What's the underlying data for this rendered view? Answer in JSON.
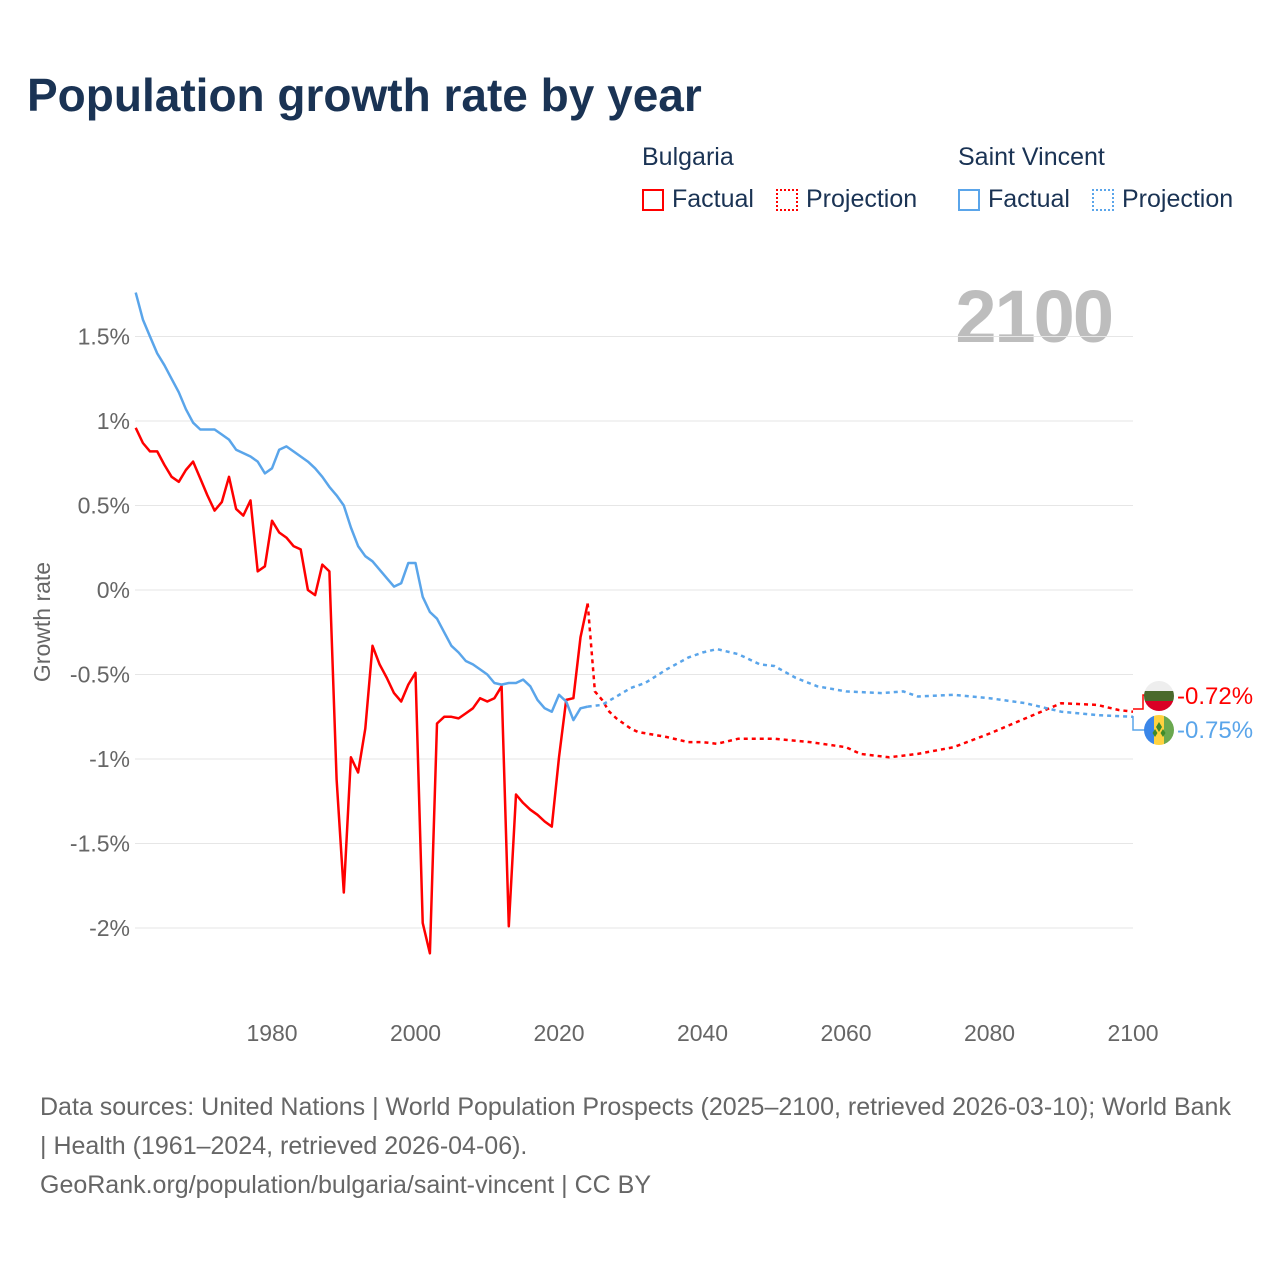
{
  "title": "Population growth rate by year",
  "current_year": "2100",
  "legend": {
    "groups": [
      {
        "name": "Bulgaria",
        "factual": "Factual",
        "projection": "Projection",
        "color": "#ff0000"
      },
      {
        "name": "Saint Vincent",
        "factual": "Factual",
        "projection": "Projection",
        "color": "#5aa5ea"
      }
    ]
  },
  "end_labels": {
    "bulgaria": "-0.72%",
    "saint_vincent": "-0.75%"
  },
  "footer": {
    "sources": "Data sources: United Nations | World Population Prospects (2025–2100, retrieved 2026-03-10); World Bank | Health (1961–2024, retrieved 2026-04-06).",
    "credit": "GeoRank.org/population/bulgaria/saint-vincent | CC BY"
  },
  "chart_data": {
    "type": "line",
    "title": "Population growth rate by year",
    "xlabel": "",
    "ylabel": "Growth rate",
    "xlim": [
      1961,
      2100
    ],
    "ylim": [
      -2.4,
      1.85
    ],
    "grid": true,
    "x_ticks": [
      1980,
      2000,
      2020,
      2040,
      2060,
      2080,
      2100
    ],
    "x_tick_labels": [
      "1980",
      "2000",
      "2020",
      "2040",
      "2060",
      "2080",
      "2100"
    ],
    "y_ticks": [
      1.5,
      1,
      0.5,
      0,
      -0.5,
      -1,
      -1.5,
      -2
    ],
    "y_tick_labels": [
      "1.5%",
      "1%",
      "0.5%",
      "0%",
      "-0.5%",
      "-1%",
      "-1.5%",
      "-2%"
    ],
    "series": [
      {
        "name": "Bulgaria Factual",
        "color": "#ff0000",
        "dash": false,
        "x": [
          1961,
          1962,
          1963,
          1964,
          1965,
          1966,
          1967,
          1968,
          1969,
          1970,
          1971,
          1972,
          1973,
          1974,
          1975,
          1976,
          1977,
          1978,
          1979,
          1980,
          1981,
          1982,
          1983,
          1984,
          1985,
          1986,
          1987,
          1988,
          1989,
          1990,
          1991,
          1992,
          1993,
          1994,
          1995,
          1996,
          1997,
          1998,
          1999,
          2000,
          2001,
          2002,
          2003,
          2004,
          2005,
          2006,
          2007,
          2008,
          2009,
          2010,
          2011,
          2012,
          2013,
          2014,
          2015,
          2016,
          2017,
          2018,
          2019,
          2020,
          2021,
          2022,
          2023,
          2024
        ],
        "y": [
          0.96,
          0.87,
          0.82,
          0.82,
          0.74,
          0.67,
          0.64,
          0.71,
          0.76,
          0.66,
          0.56,
          0.47,
          0.52,
          0.67,
          0.48,
          0.44,
          0.53,
          0.11,
          0.14,
          0.41,
          0.34,
          0.31,
          0.26,
          0.24,
          0.0,
          -0.03,
          0.15,
          0.11,
          -1.12,
          -1.79,
          -0.99,
          -1.08,
          -0.82,
          -0.33,
          -0.44,
          -0.52,
          -0.61,
          -0.66,
          -0.56,
          -0.49,
          -1.97,
          -2.15,
          -0.79,
          -0.75,
          -0.75,
          -0.76,
          -0.73,
          -0.7,
          -0.64,
          -0.66,
          -0.64,
          -0.57,
          -1.99,
          -1.21,
          -1.26,
          -1.3,
          -1.33,
          -1.37,
          -1.4,
          -0.99,
          -0.65,
          -0.64,
          -0.28,
          -0.08
        ]
      },
      {
        "name": "Bulgaria Projection",
        "color": "#ff0000",
        "dash": true,
        "x": [
          2024,
          2025,
          2026,
          2027,
          2028,
          2029,
          2030,
          2031,
          2035,
          2038,
          2040,
          2042,
          2045,
          2050,
          2055,
          2060,
          2062,
          2066,
          2070,
          2075,
          2080,
          2085,
          2090,
          2095,
          2098,
          2100
        ],
        "y": [
          -0.08,
          -0.6,
          -0.65,
          -0.72,
          -0.76,
          -0.79,
          -0.82,
          -0.84,
          -0.87,
          -0.9,
          -0.9,
          -0.91,
          -0.88,
          -0.88,
          -0.9,
          -0.93,
          -0.97,
          -0.99,
          -0.97,
          -0.93,
          -0.85,
          -0.76,
          -0.67,
          -0.68,
          -0.71,
          -0.72
        ]
      },
      {
        "name": "Saint Vincent Factual",
        "color": "#5aa5ea",
        "dash": false,
        "x": [
          1961,
          1962,
          1963,
          1964,
          1965,
          1966,
          1967,
          1968,
          1969,
          1970,
          1971,
          1972,
          1973,
          1974,
          1975,
          1976,
          1977,
          1978,
          1979,
          1980,
          1981,
          1982,
          1983,
          1984,
          1985,
          1986,
          1987,
          1988,
          1989,
          1990,
          1991,
          1992,
          1993,
          1994,
          1995,
          1996,
          1997,
          1998,
          1999,
          2000,
          2001,
          2002,
          2003,
          2004,
          2005,
          2006,
          2007,
          2008,
          2009,
          2010,
          2011,
          2012,
          2013,
          2014,
          2015,
          2016,
          2017,
          2018,
          2019,
          2020,
          2021,
          2022,
          2023,
          2024
        ],
        "y": [
          1.76,
          1.6,
          1.5,
          1.4,
          1.33,
          1.25,
          1.17,
          1.07,
          0.99,
          0.95,
          0.95,
          0.95,
          0.92,
          0.89,
          0.83,
          0.81,
          0.79,
          0.76,
          0.69,
          0.72,
          0.83,
          0.85,
          0.82,
          0.79,
          0.76,
          0.72,
          0.67,
          0.61,
          0.56,
          0.5,
          0.37,
          0.26,
          0.2,
          0.17,
          0.12,
          0.07,
          0.02,
          0.04,
          0.16,
          0.16,
          -0.04,
          -0.13,
          -0.17,
          -0.25,
          -0.33,
          -0.37,
          -0.42,
          -0.44,
          -0.47,
          -0.5,
          -0.55,
          -0.56,
          -0.55,
          -0.55,
          -0.53,
          -0.57,
          -0.65,
          -0.7,
          -0.72,
          -0.62,
          -0.66,
          -0.77,
          -0.7,
          -0.69
        ]
      },
      {
        "name": "Saint Vincent Projection",
        "color": "#5aa5ea",
        "dash": true,
        "x": [
          2024,
          2026,
          2028,
          2030,
          2032,
          2035,
          2038,
          2040,
          2042,
          2045,
          2048,
          2050,
          2053,
          2056,
          2060,
          2065,
          2068,
          2070,
          2075,
          2080,
          2085,
          2090,
          2095,
          2100
        ],
        "y": [
          -0.69,
          -0.68,
          -0.63,
          -0.58,
          -0.55,
          -0.47,
          -0.4,
          -0.37,
          -0.35,
          -0.38,
          -0.44,
          -0.45,
          -0.52,
          -0.57,
          -0.6,
          -0.61,
          -0.6,
          -0.63,
          -0.62,
          -0.64,
          -0.67,
          -0.72,
          -0.74,
          -0.75
        ]
      }
    ]
  }
}
